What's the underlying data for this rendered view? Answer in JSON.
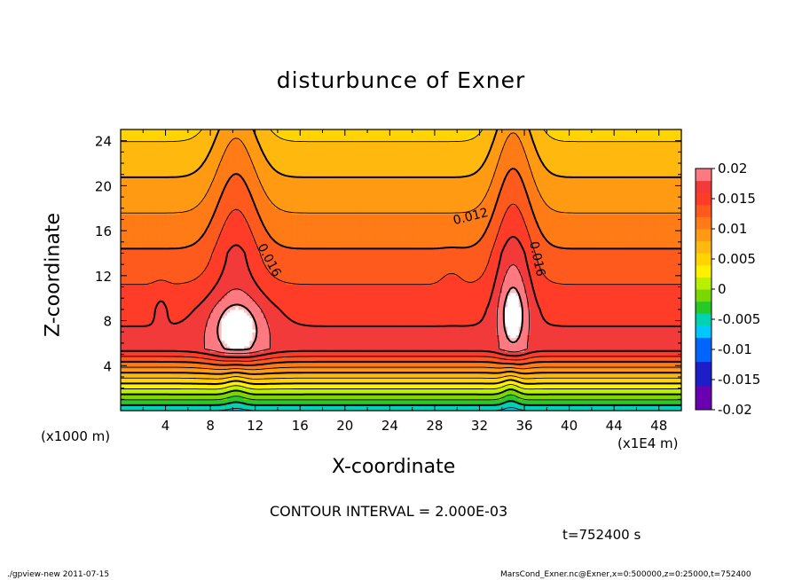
{
  "chart_data": {
    "type": "heatmap",
    "title": "disturbunce of Exner",
    "xlabel": "X-coordinate",
    "ylabel": "Z-coordinate",
    "x_unit": "(x1E4 m)",
    "y_unit": "(x1000 m)",
    "xlim": [
      0,
      50
    ],
    "ylim": [
      0,
      25
    ],
    "x_ticks": [
      4,
      8,
      12,
      16,
      20,
      24,
      28,
      32,
      36,
      40,
      44,
      48
    ],
    "y_ticks": [
      4,
      8,
      12,
      16,
      20,
      24
    ],
    "colorbar": {
      "levels": [
        0.02,
        0.015,
        0.01,
        0.005,
        0,
        -0.005,
        -0.01,
        -0.015,
        -0.02
      ],
      "labels": [
        "0.02",
        "0.015",
        "0.01",
        "0.005",
        "0",
        "-0.005",
        "-0.01",
        "-0.015",
        "-0.02"
      ],
      "colors": [
        "#ff0000",
        "#ff4a1e",
        "#ff7b16",
        "#ffb80e",
        "#fff000",
        "#b8f000",
        "#28c828",
        "#00d2b4",
        "#00c8ff",
        "#0064ff",
        "#1e1ec8",
        "#6a00b0"
      ]
    },
    "contour_labels": [
      "0.012",
      "0.016",
      "0.016"
    ],
    "contour_interval_text": "CONTOUR INTERVAL = 2.000E-03",
    "time_label": "t=752400 s",
    "approx_values": {
      "surface_z0": -0.006,
      "top_z25": 0.005,
      "max_core_x10_z7": 0.021,
      "max_core_x35_z8": 0.021
    }
  },
  "footer": {
    "left": "./gpview-new   2011-07-15",
    "right": "MarsCond_Exner.nc@Exner,x=0:500000,z=0:25000,t=752400"
  }
}
